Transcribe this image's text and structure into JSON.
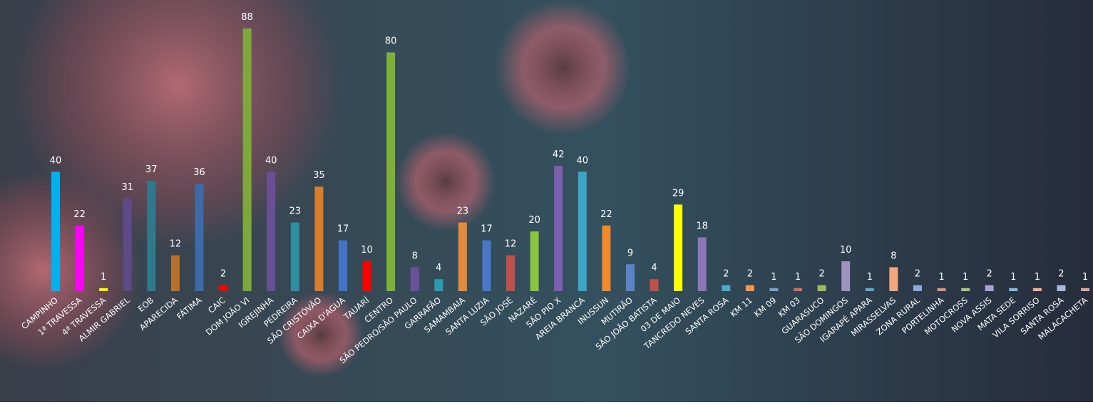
{
  "chart_data": {
    "type": "bar",
    "categories": [
      "CAMPINHO",
      "1ª TRAVESSA",
      "4ª TRAVESSA",
      "ALMIR GABRIEL",
      "EOB",
      "APARECIDA",
      "FÁTIMA",
      "CAIC",
      "DOM JOÃO VI",
      "IGREJINHA",
      "PEDREIRA",
      "SÃO CRISTÓVÃO",
      "CAIXA D'AGUA",
      "TAUARÍ",
      "CENTRO",
      "SÃO PEDRO/SÃO PAULO",
      "GARRAFÃO",
      "SAMAMBAIA",
      "SANTA LUZIA",
      "SÃO JOSÉ",
      "NAZARÉ",
      "SÃO PIO X",
      "AREIA BRANCA",
      "INUSSUN",
      "MUTIRÃO",
      "SÃO JOÃO BATISTA",
      "03 DE MAIO",
      "TANCREDO NEVES",
      "SANTA ROSA",
      "KM 11",
      "KM 09",
      "KM 03",
      "GUARASUCO",
      "SÃO DOMINGOS",
      "IGARAPÉ APARA",
      "MIRASSELVAS",
      "ZONA RURAL",
      "PORTELINHA",
      "MOTOCROSS",
      "NOVA ASSIS",
      "MATA SEDE",
      "VILA SORRISO",
      "SANTA ROSA",
      "MALACACHETA"
    ],
    "values": [
      40,
      22,
      1,
      31,
      37,
      12,
      36,
      2,
      88,
      40,
      23,
      35,
      17,
      10,
      80,
      8,
      4,
      23,
      17,
      12,
      20,
      42,
      40,
      22,
      9,
      4,
      29,
      18,
      2,
      2,
      1,
      1,
      2,
      10,
      1,
      8,
      2,
      1,
      1,
      2,
      1,
      1,
      2,
      1
    ],
    "colors": [
      "#00b0f0",
      "#ff00ff",
      "#ffff00",
      "#5e4a8a",
      "#2e7a8c",
      "#b8702a",
      "#3d6aa8",
      "#ff0000",
      "#7ea83a",
      "#6a4f96",
      "#2f8ea0",
      "#d97d2a",
      "#4472c4",
      "#ff0000",
      "#7eb03a",
      "#6b4f9a",
      "#2a9bb0",
      "#e38b3a",
      "#4a78c8",
      "#c0504d",
      "#8ac43f",
      "#7d5fb0",
      "#3aa6c4",
      "#f08a2a",
      "#5b84c8",
      "#c0504d",
      "#ffff00",
      "#8c76b8",
      "#4bacc6",
      "#f79646",
      "#7f9fd0",
      "#d07060",
      "#9bbb59",
      "#a092c0",
      "#60a8c0",
      "#f4a680",
      "#8ea8d8",
      "#d89080",
      "#a8c880",
      "#a8a0d0",
      "#80c0d8",
      "#f8b090",
      "#a8b8e0",
      "#e0a8a0"
    ]
  }
}
